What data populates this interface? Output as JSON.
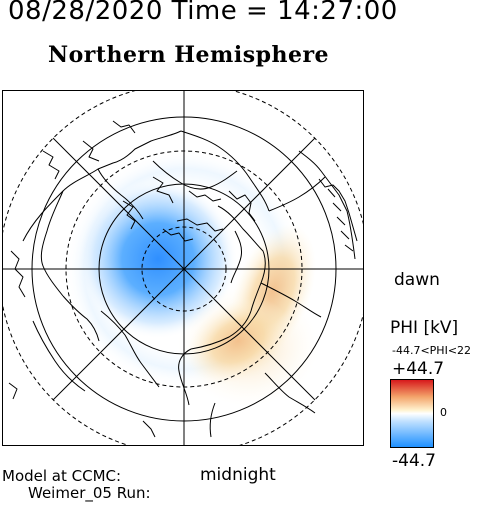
{
  "header": {
    "datetime": "08/28/2020 Time = 14:27:00",
    "hemisphere": "Northern Hemisphere"
  },
  "labels": {
    "dawn": "dawn",
    "midnight": "midnight"
  },
  "colorbar": {
    "title": "PHI [kV]",
    "range_text": "-44.7<PHI<22",
    "max": "+44.7",
    "zero": "0",
    "min": "-44.7",
    "colors": {
      "positive": "#d7191c",
      "neutral": "#ffffff",
      "negative": "#1e90ff"
    }
  },
  "footer": {
    "line1": "Model at CCMC:",
    "line2": "Weimer_05 Run:"
  },
  "icons": [
    "polar-projection-map"
  ]
}
